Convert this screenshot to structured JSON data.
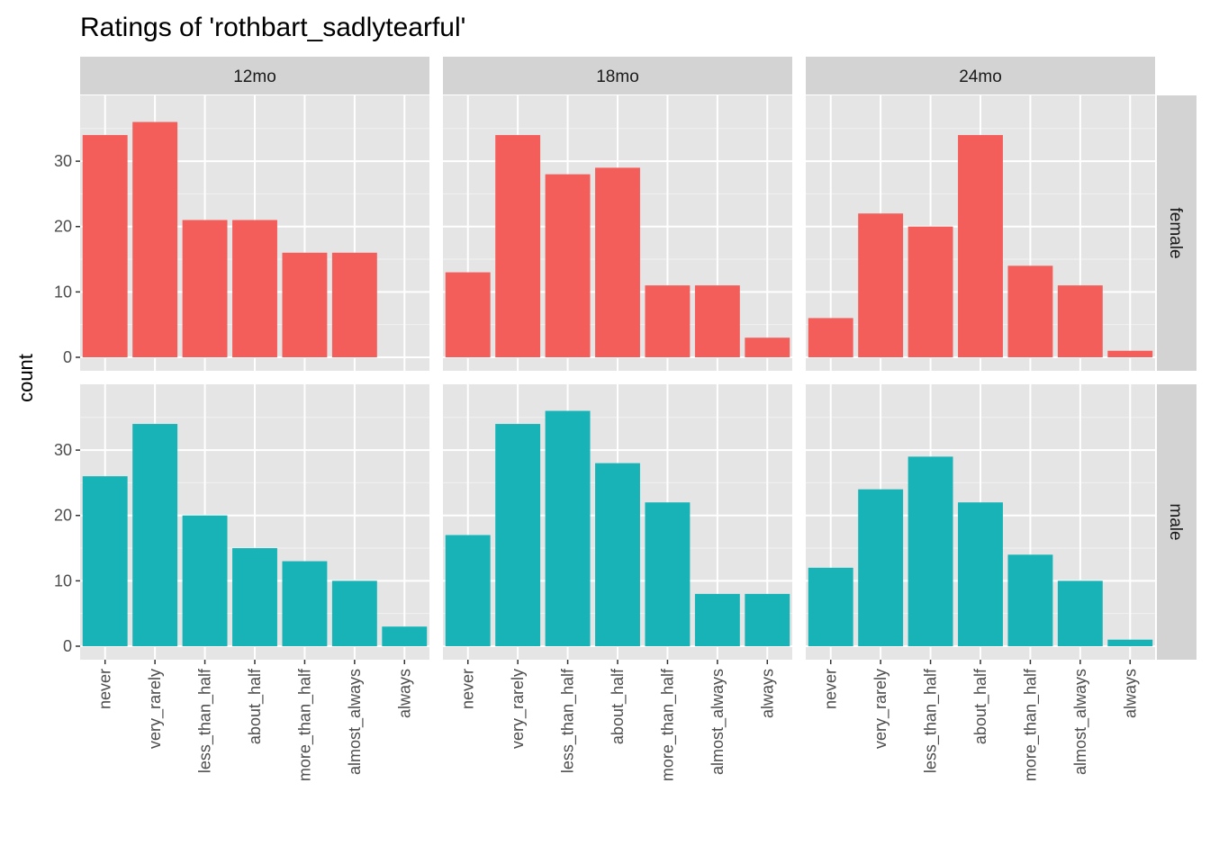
{
  "chart_data": {
    "type": "bar",
    "title": "Ratings of 'rothbart_sadlytearful'",
    "ylabel": "count",
    "xlabel": "",
    "ylim": [
      0,
      38
    ],
    "yticks": [
      0,
      10,
      20,
      30
    ],
    "categories": [
      "never",
      "very_rarely",
      "less_than_half",
      "about_half",
      "more_than_half",
      "almost_always",
      "always"
    ],
    "columns": [
      "12mo",
      "18mo",
      "24mo"
    ],
    "rows": [
      "female",
      "male"
    ],
    "colors": {
      "female": "#F35E5A",
      "male": "#17B3B7"
    },
    "panel_background": "#E5E5E5",
    "strip_background": "#D3D3D3",
    "grid": true,
    "legend": "none",
    "panels": [
      {
        "column": "12mo",
        "row": "female",
        "values": [
          34,
          36,
          21,
          21,
          16,
          16,
          0
        ]
      },
      {
        "column": "18mo",
        "row": "female",
        "values": [
          13,
          34,
          28,
          29,
          11,
          11,
          3
        ]
      },
      {
        "column": "24mo",
        "row": "female",
        "values": [
          6,
          22,
          20,
          34,
          14,
          11,
          1
        ]
      },
      {
        "column": "12mo",
        "row": "male",
        "values": [
          26,
          34,
          20,
          15,
          13,
          10,
          3
        ]
      },
      {
        "column": "18mo",
        "row": "male",
        "values": [
          17,
          34,
          36,
          28,
          22,
          8,
          8
        ]
      },
      {
        "column": "24mo",
        "row": "male",
        "values": [
          12,
          24,
          29,
          22,
          14,
          10,
          1
        ]
      }
    ]
  }
}
